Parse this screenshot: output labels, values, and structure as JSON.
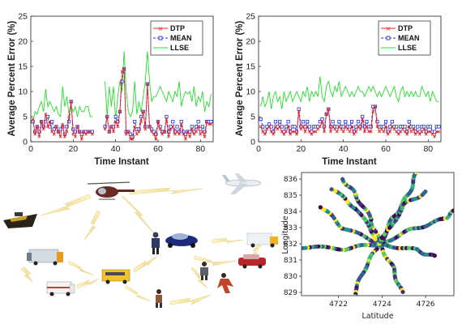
{
  "chart_data": [
    {
      "type": "line",
      "title": "",
      "xlabel": "Time Instant",
      "ylabel": "Average Percent Error (%)",
      "xlim": [
        0,
        86
      ],
      "ylim": [
        0,
        25
      ],
      "xticks": [
        0,
        20,
        40,
        60,
        80
      ],
      "yticks": [
        0,
        5,
        10,
        15,
        20,
        25
      ],
      "legend": "top-right",
      "x": [
        1,
        2,
        3,
        4,
        5,
        6,
        7,
        8,
        9,
        10,
        11,
        12,
        13,
        14,
        15,
        16,
        17,
        18,
        19,
        20,
        21,
        22,
        23,
        24,
        25,
        26,
        27,
        28,
        29,
        30,
        31,
        32,
        33,
        34,
        35,
        36,
        37,
        38,
        39,
        40,
        41,
        42,
        43,
        44,
        45,
        46,
        47,
        48,
        49,
        50,
        51,
        52,
        53,
        54,
        55,
        56,
        57,
        58,
        59,
        60,
        61,
        62,
        63,
        64,
        65,
        66,
        67,
        68,
        69,
        70,
        71,
        72,
        73,
        74,
        75,
        76,
        77,
        78,
        79,
        80,
        81,
        82,
        83,
        84,
        85
      ],
      "series": [
        {
          "name": "DTP",
          "color": "#e8221c",
          "marker": "x",
          "style": "solid",
          "values": [
            4.5,
            1.5,
            3,
            1,
            4,
            2.5,
            5.5,
            3,
            4,
            2,
            1.5,
            3,
            2,
            1,
            3.5,
            1,
            2,
            5,
            8,
            1.5,
            1,
            3,
            2,
            0.5,
            2,
            1.5,
            2,
            2,
            1.5,
            null,
            null,
            null,
            null,
            null,
            2.5,
            5,
            2,
            3,
            2,
            4,
            3,
            6,
            14,
            14.5,
            1.5,
            2,
            0.5,
            0.5,
            3,
            1.5,
            2,
            4,
            6,
            2.5,
            11.5,
            3,
            2,
            1.5,
            0.5,
            4,
            2.5,
            1.5,
            2,
            4.5,
            1,
            2.5,
            3,
            1.5,
            2,
            1.5,
            3.5,
            1.5,
            0.5,
            2,
            1,
            2.5,
            1.5,
            2,
            3,
            1.5,
            2,
            1,
            4,
            3.5,
            3.5
          ]
        },
        {
          "name": "MEAN",
          "color": "#1f2fd8",
          "marker": "s",
          "style": "dashed",
          "values": [
            4,
            2,
            3,
            2,
            4,
            3,
            4,
            5,
            3,
            4,
            2.5,
            3,
            2,
            2.5,
            3,
            1.5,
            3,
            4,
            8,
            2.5,
            2,
            3,
            2,
            1.5,
            2,
            2,
            2,
            2,
            2,
            null,
            null,
            null,
            null,
            null,
            3,
            5,
            2,
            3,
            3,
            5,
            4,
            6,
            12,
            14.5,
            2,
            2,
            1.5,
            1,
            4,
            2.5,
            2.5,
            5,
            6,
            3,
            11.5,
            3,
            2.5,
            2,
            1.5,
            4,
            3,
            2,
            2,
            5,
            2,
            3,
            4,
            2,
            3,
            2,
            4,
            2,
            1.5,
            2,
            2,
            3,
            2,
            3,
            4,
            2.5,
            3,
            2,
            4,
            4,
            4
          ]
        },
        {
          "name": "LLSE",
          "color": "#22e02a",
          "marker": "none",
          "style": "solid",
          "values": [
            4,
            6,
            5.5,
            7,
            8,
            6,
            10.5,
            7,
            8,
            7,
            6,
            7,
            5.5,
            5,
            11,
            7,
            9,
            5.5,
            7,
            6,
            7,
            5,
            7,
            6,
            6,
            7,
            7,
            5,
            5,
            null,
            null,
            null,
            null,
            null,
            12,
            5,
            11,
            7,
            11,
            4.5,
            9,
            12,
            10,
            18,
            10,
            6,
            5,
            6,
            12,
            5.5,
            8,
            6,
            9,
            12,
            18,
            12,
            8,
            9,
            9,
            10,
            11,
            10,
            9,
            8,
            10,
            9,
            8,
            10,
            9,
            12,
            7,
            9,
            10,
            9.5,
            10,
            8,
            11,
            7,
            9,
            8,
            10,
            6,
            8,
            7,
            9.5
          ]
        }
      ]
    },
    {
      "type": "line",
      "title": "",
      "xlabel": "Time Instant",
      "ylabel": "Average Percent Error (%)",
      "xlim": [
        0,
        86
      ],
      "ylim": [
        0,
        25
      ],
      "xticks": [
        0,
        20,
        40,
        60,
        80
      ],
      "yticks": [
        0,
        5,
        10,
        15,
        20,
        25
      ],
      "legend": "top-right",
      "x": [
        1,
        2,
        3,
        4,
        5,
        6,
        7,
        8,
        9,
        10,
        11,
        12,
        13,
        14,
        15,
        16,
        17,
        18,
        19,
        20,
        21,
        22,
        23,
        24,
        25,
        26,
        27,
        28,
        29,
        30,
        31,
        32,
        33,
        34,
        35,
        36,
        37,
        38,
        39,
        40,
        41,
        42,
        43,
        44,
        45,
        46,
        47,
        48,
        49,
        50,
        51,
        52,
        53,
        54,
        55,
        56,
        57,
        58,
        59,
        60,
        61,
        62,
        63,
        64,
        65,
        66,
        67,
        68,
        69,
        70,
        71,
        72,
        73,
        74,
        75,
        76,
        77,
        78,
        79,
        80,
        81,
        82,
        83,
        84,
        85
      ],
      "series": [
        {
          "name": "DTP",
          "color": "#e8221c",
          "marker": "x",
          "style": "solid",
          "values": [
            3,
            2,
            1.5,
            2.5,
            3,
            2,
            1.5,
            3,
            2.5,
            3,
            2,
            1.5,
            2,
            3,
            1.5,
            2,
            2,
            1.5,
            6,
            2.5,
            3,
            2,
            3,
            2,
            1.5,
            2,
            2,
            2.5,
            3,
            4,
            2,
            5.5,
            6.5,
            2,
            3,
            2.5,
            2,
            3,
            2.5,
            2,
            3,
            2.5,
            2,
            3,
            1.5,
            2,
            3,
            2.5,
            4.5,
            2,
            3,
            2,
            2,
            6,
            7,
            3,
            2,
            2.5,
            2,
            3,
            1.5,
            2,
            3,
            2.5,
            2,
            1.5,
            2,
            2.5,
            2,
            1.5,
            3,
            2,
            2.5,
            1.5,
            2,
            1.5,
            2,
            2.5,
            1.5,
            2,
            2,
            1.5,
            1,
            2,
            2
          ]
        },
        {
          "name": "MEAN",
          "color": "#1f2fd8",
          "marker": "s",
          "style": "dashed",
          "values": [
            4.5,
            3,
            2,
            3,
            3.5,
            3,
            2,
            4,
            3,
            4,
            3,
            2,
            3,
            4,
            2,
            3,
            3,
            2,
            6.5,
            3,
            4,
            3,
            4,
            3,
            2,
            3,
            3,
            3,
            4,
            4.5,
            3,
            5.5,
            6.5,
            3,
            4,
            3,
            3,
            4,
            3,
            3,
            4,
            3,
            3,
            4,
            2,
            3,
            4,
            3,
            5,
            3,
            4,
            3,
            3,
            7,
            7,
            4,
            3,
            3,
            3,
            4,
            2,
            3,
            4,
            3,
            3,
            2,
            3,
            3,
            3,
            2,
            4,
            3,
            3,
            2,
            3,
            2,
            3,
            3,
            2,
            3,
            3,
            2,
            2,
            3,
            3
          ]
        },
        {
          "name": "LLSE",
          "color": "#22e02a",
          "marker": "none",
          "style": "solid",
          "values": [
            7,
            9,
            7,
            8,
            10,
            6.5,
            9,
            10,
            8,
            9,
            6.5,
            10,
            8,
            9,
            10,
            8,
            9,
            10,
            9,
            8,
            10,
            9,
            11,
            8,
            10,
            9,
            10,
            9,
            13,
            9,
            8,
            11,
            12,
            10,
            9,
            11,
            10,
            12,
            9,
            10,
            11,
            10,
            9,
            10,
            9,
            10,
            11,
            10,
            10,
            9,
            10,
            11,
            10,
            11,
            10,
            9,
            10,
            9,
            10,
            11,
            10,
            9,
            10,
            11,
            9,
            8,
            10,
            11,
            9,
            10,
            9,
            10,
            9,
            10,
            9,
            9,
            11,
            10,
            9,
            10,
            8,
            10,
            9,
            8,
            8
          ]
        }
      ]
    },
    {
      "type": "scatter",
      "title": "",
      "xlabel": "Latitude",
      "ylabel": "Longitude",
      "xlim": [
        4720.3,
        4727.3
      ],
      "ylim": [
        828.8,
        836.4
      ],
      "xticks": [
        4722,
        4724,
        4726
      ],
      "yticks": [
        829,
        830,
        831,
        832,
        833,
        834,
        835,
        836
      ],
      "colormap": "viridis",
      "tracks": [
        [
          [
            4723.9,
            832.0
          ],
          [
            4723.5,
            833.5
          ],
          [
            4722.8,
            835.0
          ],
          [
            4722.2,
            836.0
          ]
        ],
        [
          [
            4723.9,
            832.0
          ],
          [
            4724.5,
            833.6
          ],
          [
            4725.2,
            835.0
          ],
          [
            4725.6,
            836.4
          ]
        ],
        [
          [
            4723.9,
            832.0
          ],
          [
            4725.4,
            832.9
          ],
          [
            4726.8,
            833.5
          ],
          [
            4727.3,
            834.0
          ]
        ],
        [
          [
            4723.9,
            832.0
          ],
          [
            4725.6,
            831.6
          ],
          [
            4726.4,
            831.2
          ]
        ],
        [
          [
            4723.9,
            832.0
          ],
          [
            4724.5,
            830.5
          ],
          [
            4724.9,
            829.0
          ]
        ],
        [
          [
            4723.9,
            832.0
          ],
          [
            4723.2,
            830.5
          ],
          [
            4722.7,
            828.8
          ]
        ],
        [
          [
            4723.9,
            832.0
          ],
          [
            4722.3,
            831.7
          ],
          [
            4720.3,
            831.8
          ]
        ],
        [
          [
            4723.9,
            832.0
          ],
          [
            4722.2,
            833.0
          ],
          [
            4721.2,
            834.3
          ]
        ],
        [
          [
            4723.9,
            832.0
          ],
          [
            4722.8,
            834.2
          ],
          [
            4721.7,
            835.4
          ]
        ],
        [
          [
            4723.9,
            832.0
          ],
          [
            4725.0,
            834.4
          ],
          [
            4726.0,
            835.2
          ]
        ]
      ]
    }
  ],
  "legend_labels": [
    "DTP",
    "MEAN",
    "LLSE"
  ],
  "illustration": {
    "name": "vehicular network scene",
    "items": [
      "helicopter",
      "airplane",
      "boat",
      "police car",
      "van",
      "red car",
      "truck",
      "ambulance",
      "bus",
      "police officer",
      "runner",
      "pedestrian"
    ]
  }
}
